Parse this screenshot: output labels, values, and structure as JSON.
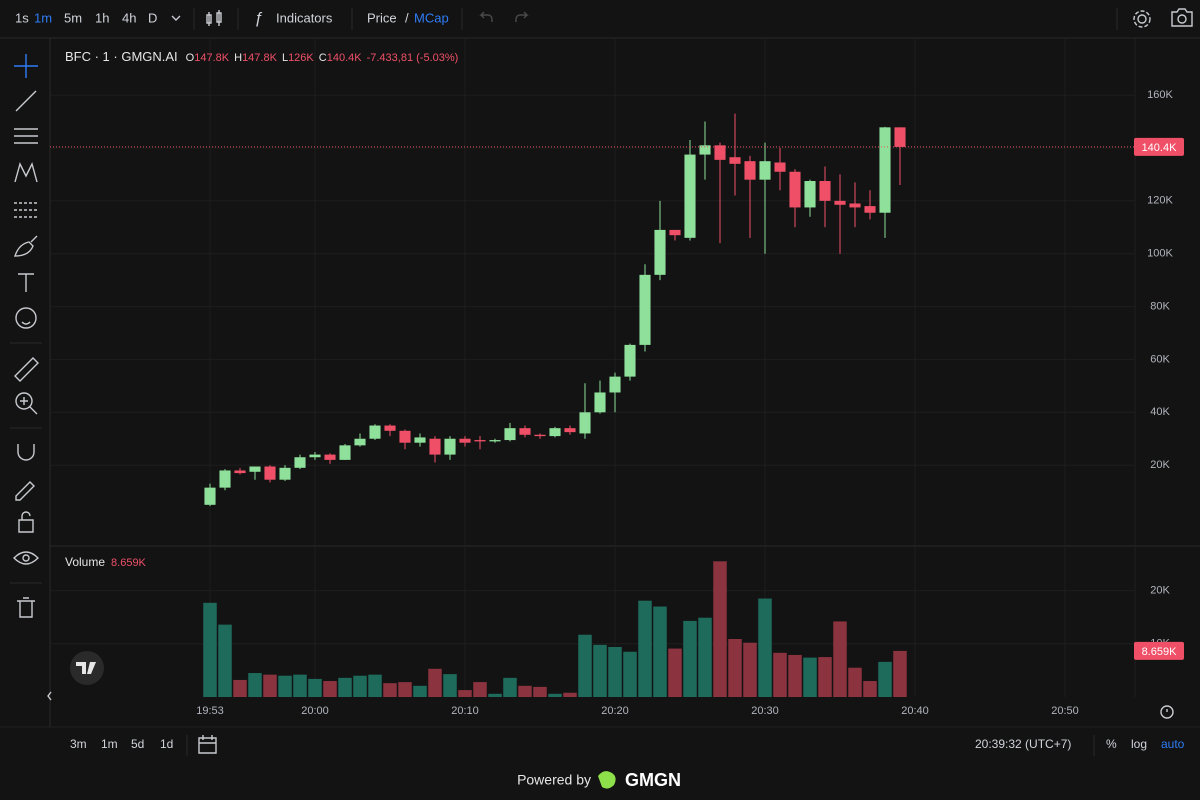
{
  "toolbar": {
    "intervals": [
      "1s",
      "1m",
      "5m",
      "1h",
      "4h",
      "D"
    ],
    "indicators": "Indicators",
    "price": "Price",
    "separator": "/",
    "mcap": "MCap"
  },
  "chart_data": {
    "type": "candlestick",
    "symbol": "BFC · 1 · GMGN.AI",
    "legend": [
      {
        "key": "O",
        "value": "147.8K"
      },
      {
        "key": "H",
        "value": "147.8K"
      },
      {
        "key": "L",
        "value": "126K"
      },
      {
        "key": "C",
        "value": "140.4K"
      }
    ],
    "change": "-7.433,81 (-5.03%)",
    "up_color": "#8ee09a",
    "down_color": "#ef5068",
    "x": [
      "19:53",
      "19:54",
      "19:55",
      "19:56",
      "19:57",
      "19:58",
      "19:59",
      "20:00",
      "20:01",
      "20:02",
      "20:03",
      "20:04",
      "20:05",
      "20:06",
      "20:07",
      "20:08",
      "20:09",
      "20:10",
      "20:11",
      "20:12",
      "20:13",
      "20:14",
      "20:15",
      "20:16",
      "20:17",
      "20:18",
      "20:19",
      "20:20",
      "20:21",
      "20:22",
      "20:23",
      "20:24",
      "20:25",
      "20:26",
      "20:27",
      "20:28",
      "20:29",
      "20:30",
      "20:31",
      "20:32",
      "20:33",
      "20:34",
      "20:35",
      "20:36",
      "20:37",
      "20:38",
      "20:39"
    ],
    "open": [
      5,
      11.5,
      18,
      17.5,
      19.5,
      14.5,
      19,
      23,
      24,
      22,
      27.5,
      30,
      35,
      33,
      28.5,
      30,
      24,
      30,
      29.5,
      29,
      29.5,
      34,
      31.5,
      31,
      34,
      32,
      40,
      47.5,
      53.5,
      65.5,
      92,
      109,
      106,
      137.5,
      141,
      136.5,
      135,
      128,
      134.5,
      131,
      117.5,
      127.5,
      120,
      119,
      118,
      115.5,
      147.8
    ],
    "high": [
      13,
      18.5,
      19,
      19.5,
      20,
      20,
      24,
      25,
      24.5,
      28,
      32,
      35.5,
      35.5,
      33.5,
      32,
      31,
      31,
      31,
      31,
      30,
      36,
      35,
      32,
      34.5,
      35,
      51,
      52,
      55,
      66,
      96,
      120,
      109,
      143,
      150,
      142,
      153,
      137,
      142,
      140,
      132,
      128,
      133,
      130,
      127,
      124,
      148,
      147.8
    ],
    "low": [
      4.5,
      10.5,
      16.5,
      14.5,
      13.5,
      14,
      18.5,
      22,
      20.5,
      22,
      27,
      29.5,
      31,
      26,
      27,
      21,
      22,
      27,
      26,
      28.5,
      29,
      30.5,
      30,
      30.5,
      31.5,
      30,
      39.5,
      40,
      52,
      63,
      90,
      105,
      105,
      128,
      104,
      122,
      106,
      100,
      124,
      110,
      114,
      110,
      100,
      110,
      113,
      106,
      126
    ],
    "close": [
      11.5,
      18,
      17,
      19.5,
      14.5,
      19,
      23,
      24,
      22,
      27.5,
      30,
      35,
      33,
      28.5,
      30.5,
      24,
      30,
      28.5,
      29,
      29.5,
      34,
      31.5,
      31,
      34,
      32.5,
      40,
      47.5,
      53.5,
      65.5,
      92,
      109,
      107,
      137.5,
      141,
      135.5,
      134,
      128,
      135,
      131,
      117.5,
      127.5,
      120,
      118.5,
      117.5,
      115.5,
      147.8,
      140.4
    ],
    "last_price_label": "140.4K",
    "ylim": [
      -10.2,
      181.6
    ],
    "yticks": [
      {
        "value": 20,
        "label": "20K"
      },
      {
        "value": 40,
        "label": "40K"
      },
      {
        "value": 60,
        "label": "60K"
      },
      {
        "value": 80,
        "label": "80K"
      },
      {
        "value": 100,
        "label": "100K"
      },
      {
        "value": 120,
        "label": "120K"
      },
      {
        "value": 140,
        "label": "140K"
      },
      {
        "value": 160,
        "label": "160K"
      }
    ],
    "xlim": [
      "19:43",
      "20:54"
    ],
    "xticks": [
      "19:53",
      "20:00",
      "20:10",
      "20:20",
      "20:30",
      "20:40",
      "20:50"
    ],
    "grid": true,
    "volume": {
      "title": "Volume",
      "up_color": "#1e6b5c",
      "down_color": "#8c3340",
      "values": [
        17.7,
        13.6,
        3.2,
        4.5,
        4.2,
        4,
        4.2,
        3.4,
        3,
        3.6,
        4,
        4.2,
        2.6,
        2.8,
        2.1,
        5.3,
        4.3,
        1.3,
        2.8,
        0.6,
        3.6,
        2.1,
        1.9,
        0.6,
        0.8,
        11.7,
        9.8,
        9.4,
        8.5,
        18.1,
        17,
        9.1,
        14.3,
        14.9,
        25.5,
        10.9,
        10.2,
        18.5,
        8.3,
        7.9,
        7.4,
        7.5,
        14.2,
        5.5,
        3,
        6.6,
        8.659
      ],
      "last_label": "8.659K",
      "ylim": [
        0,
        28
      ],
      "yticks": [
        {
          "value": 10,
          "label": "10K"
        },
        {
          "value": 20,
          "label": "20K"
        }
      ]
    }
  },
  "bottom_bar": {
    "ranges": [
      "3m",
      "1m",
      "5d",
      "1d"
    ],
    "clock": "20:39:32 (UTC+7)",
    "percent": "%",
    "log": "log",
    "auto": "auto"
  },
  "footer": {
    "powered_by": "Powered by",
    "brand": "GMGN"
  }
}
